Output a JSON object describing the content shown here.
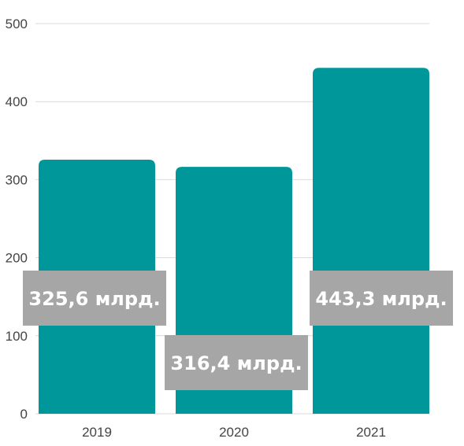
{
  "chart_data": {
    "type": "bar",
    "categories": [
      "2019",
      "2020",
      "2021"
    ],
    "values": [
      325.6,
      316.4,
      443.3
    ],
    "data_labels": [
      "325,6 млрд.",
      "316,4 млрд.",
      "443,3 млрд."
    ],
    "y_ticks": [
      "0",
      "100",
      "200",
      "300",
      "400",
      "500"
    ],
    "ylim": [
      0,
      500
    ],
    "title": "",
    "xlabel": "",
    "ylabel": "",
    "grid": true,
    "legend": "none",
    "colors": {
      "bar": "#00979b",
      "label_box": "#a6a6a6",
      "label_text": "#ffffff",
      "grid": "#d9d9d9",
      "axis_text": "#444444"
    }
  }
}
